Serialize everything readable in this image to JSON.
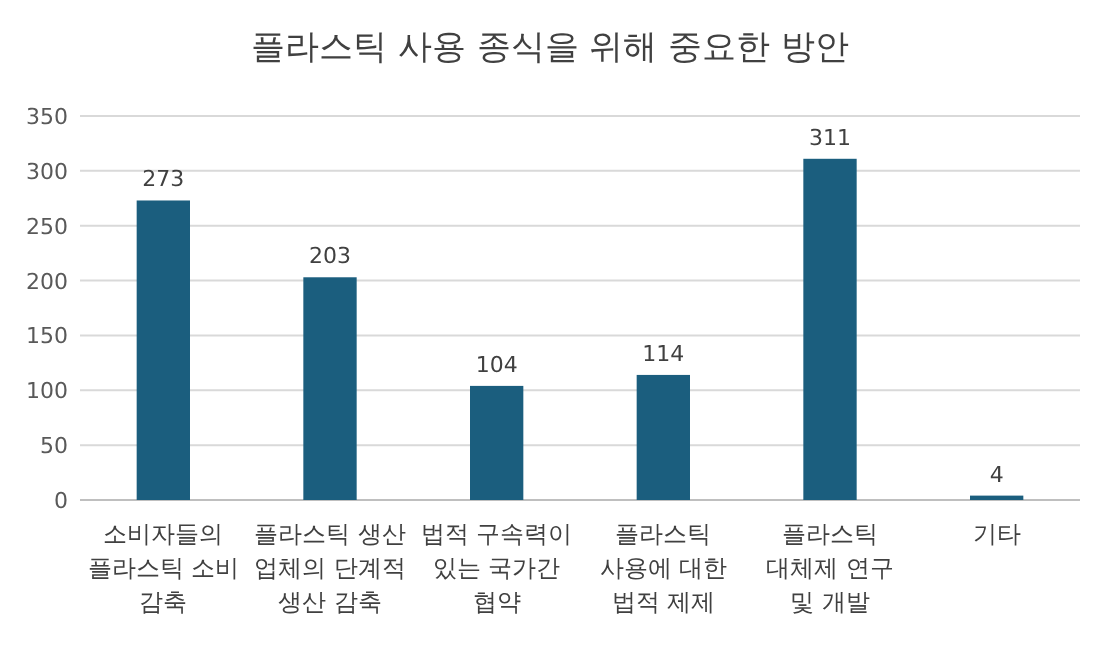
{
  "chart_data": {
    "type": "bar",
    "title": "플라스틱 사용 종식을 위해 중요한 방안",
    "categories": [
      "소비자들의 플라스틱 소비 감축",
      "플라스틱 생산 업체의 단계적 생산 감축",
      "법적 구속력이 있는 국가간 협약",
      "플라스틱 사용에 대한 법적 제제",
      "플라스틱 대체제 연구 및 개발",
      "기타"
    ],
    "values": [
      273,
      203,
      104,
      114,
      311,
      4
    ],
    "color": "#1b5e7e",
    "ylim": [
      0,
      350
    ],
    "yticks": [
      0,
      50,
      100,
      150,
      200,
      250,
      300,
      350
    ],
    "grid": "y",
    "data_labels": true
  }
}
